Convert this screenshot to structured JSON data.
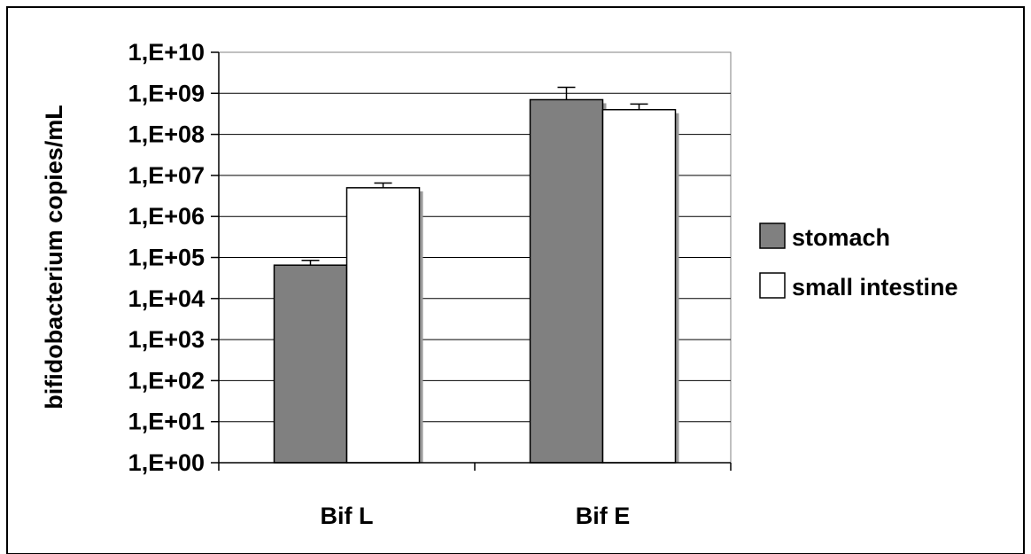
{
  "chart_data": {
    "type": "bar",
    "categories": [
      "Bif L",
      "Bif E"
    ],
    "series": [
      {
        "name": "stomach",
        "values": [
          65000,
          700000000
        ],
        "errors": [
          20000,
          700000000
        ],
        "color": "#808080"
      },
      {
        "name": "small intestine",
        "values": [
          5000000,
          400000000
        ],
        "errors": [
          1500000,
          150000000
        ],
        "color": "#ffffff"
      }
    ],
    "ylabel": "bifidobacterium copies/mL",
    "y_scale": "log",
    "ylim": [
      1,
      10000000000
    ],
    "yticks": [
      "1,E+00",
      "1,E+01",
      "1,E+02",
      "1,E+03",
      "1,E+04",
      "1,E+05",
      "1,E+06",
      "1,E+07",
      "1,E+08",
      "1,E+09",
      "1,E+10"
    ],
    "grid": true,
    "legend_position": "right"
  }
}
